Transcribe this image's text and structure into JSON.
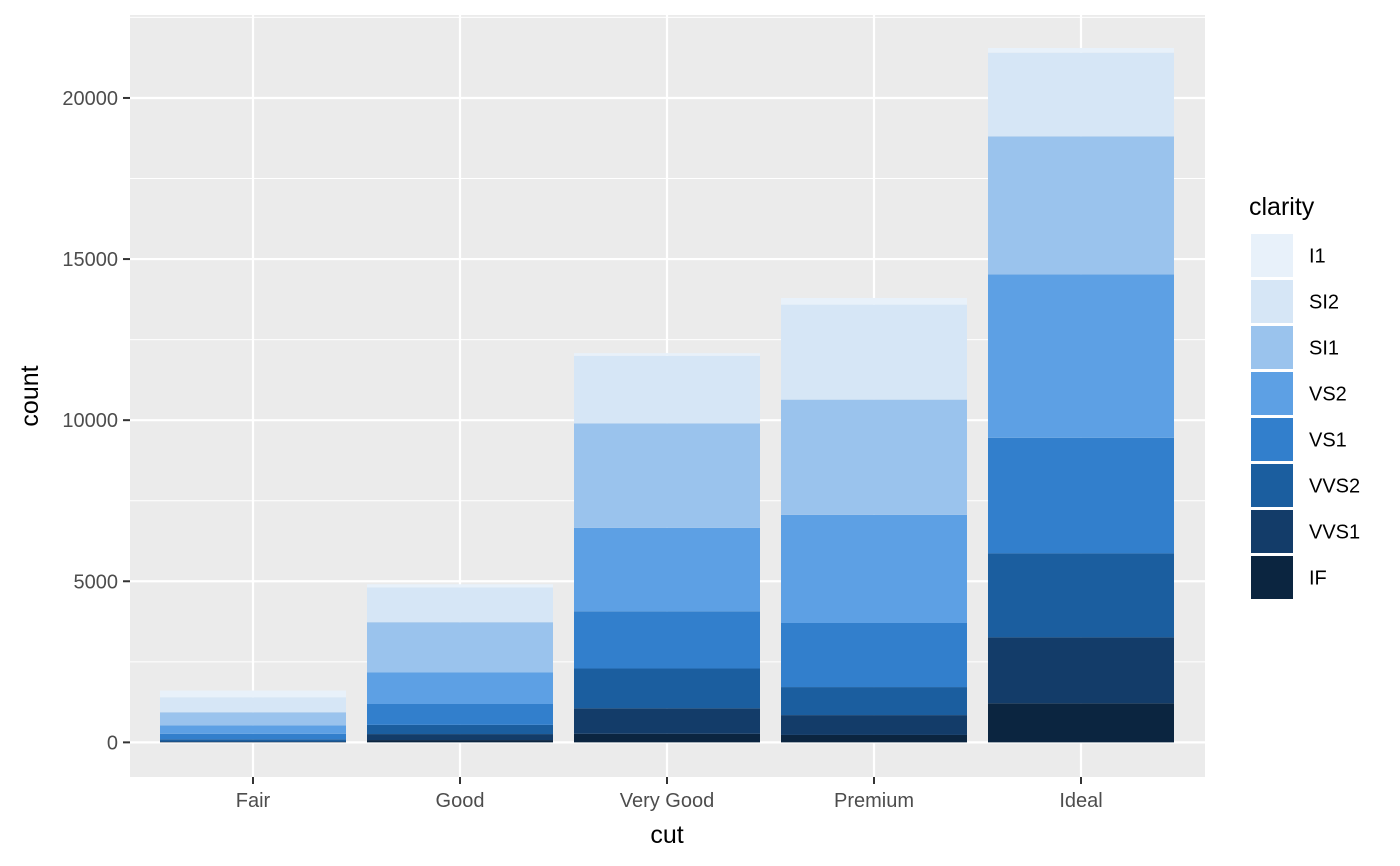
{
  "chart_data": {
    "type": "bar",
    "stacked": true,
    "title": "",
    "xlabel": "cut",
    "ylabel": "count",
    "categories": [
      "Fair",
      "Good",
      "Very Good",
      "Premium",
      "Ideal"
    ],
    "ylim": [
      -1075,
      22575
    ],
    "yticks": [
      0,
      5000,
      10000,
      15000,
      20000
    ],
    "grid": true,
    "legend": {
      "title": "clarity",
      "position": "right"
    },
    "series": [
      {
        "name": "I1",
        "color": "#e8f1fa",
        "values": [
          210,
          96,
          84,
          205,
          146
        ]
      },
      {
        "name": "SI2",
        "color": "#d6e6f6",
        "values": [
          466,
          1081,
          2100,
          2949,
          2598
        ]
      },
      {
        "name": "SI1",
        "color": "#9ac3ed",
        "values": [
          408,
          1560,
          3240,
          3575,
          4282
        ]
      },
      {
        "name": "VS2",
        "color": "#5da0e4",
        "values": [
          261,
          978,
          2591,
          3357,
          5071
        ]
      },
      {
        "name": "VS1",
        "color": "#327fcc",
        "values": [
          170,
          648,
          1775,
          1989,
          3589
        ]
      },
      {
        "name": "VVS2",
        "color": "#1b5e9f",
        "values": [
          69,
          286,
          1235,
          870,
          2606
        ]
      },
      {
        "name": "VVS1",
        "color": "#133c69",
        "values": [
          17,
          186,
          789,
          616,
          2047
        ]
      },
      {
        "name": "IF",
        "color": "#0b2540",
        "values": [
          9,
          71,
          268,
          230,
          1212
        ]
      }
    ],
    "colors": {
      "panel": "#ebebeb",
      "grid_major": "#ffffff",
      "tick_text": "#4d4d4d",
      "tick_mark": "#333333"
    }
  }
}
